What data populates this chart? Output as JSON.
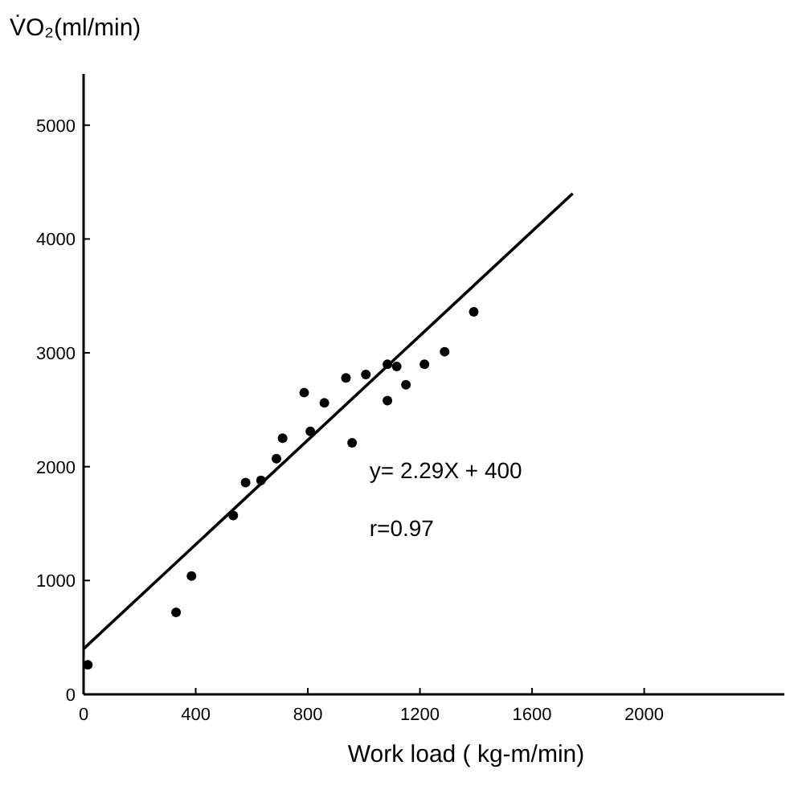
{
  "chart_data": {
    "type": "scatter",
    "xlabel": "Work load ( kg-m/min)",
    "ylabel": "V̇O₂(ml/min)",
    "xlim": [
      0,
      2500
    ],
    "ylim": [
      0,
      5450
    ],
    "xticks": [
      0,
      400,
      800,
      1200,
      1600,
      2000
    ],
    "yticks": [
      0,
      1000,
      2000,
      3000,
      4000,
      5000
    ],
    "grid": false,
    "series": [
      {
        "color": "#000000",
        "marker": "circle",
        "x": [
          15,
          330,
          385,
          534,
          578,
          633,
          688,
          710,
          787,
          809,
          859,
          936,
          958,
          1007,
          1084,
          1084,
          1117,
          1150,
          1216,
          1288,
          1392
        ],
        "values": [
          260,
          720,
          1040,
          1570,
          1860,
          1880,
          2070,
          2250,
          2650,
          2310,
          2560,
          2780,
          2210,
          2810,
          2900,
          2580,
          2880,
          2720,
          2900,
          3010,
          3360
        ]
      },
      {
        "type": "line",
        "color": "#000000",
        "line_style": "solid",
        "x": [
          0,
          1745
        ],
        "values": [
          400,
          4400
        ]
      }
    ],
    "annotations": [
      "y= 2.29X + 400",
      "r=0.97"
    ]
  }
}
